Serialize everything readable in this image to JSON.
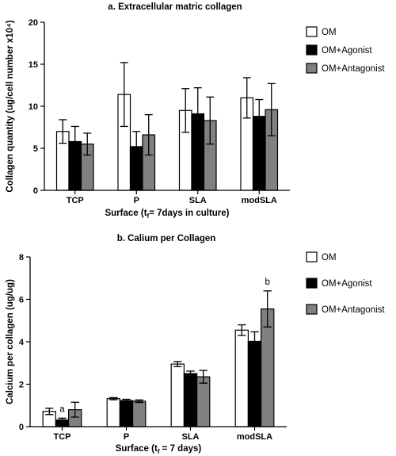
{
  "chart_data": [
    {
      "type": "bar",
      "title": "a. Extracellular matric collagen",
      "ylabel": "Collagen quantity (ug/cell number x10⁴)",
      "xlabel_parts": [
        "Surface (t",
        "f",
        "= 7days in culture)"
      ],
      "categories": [
        "TCP",
        "P",
        "SLA",
        "modSLA"
      ],
      "ylim": [
        0,
        20
      ],
      "yticks": [
        0,
        5,
        10,
        15,
        20
      ],
      "legend_position": "right",
      "series": [
        {
          "name": "OM",
          "color": "#ffffff",
          "values": [
            7.0,
            11.4,
            9.5,
            11.0
          ],
          "errors": [
            1.4,
            3.8,
            2.6,
            2.4
          ]
        },
        {
          "name": "OM+Agonist",
          "color": "#000000",
          "values": [
            5.8,
            5.2,
            9.1,
            8.8
          ],
          "errors": [
            1.8,
            1.8,
            3.1,
            2.0
          ]
        },
        {
          "name": "OM+Antagonist",
          "color": "#808080",
          "values": [
            5.5,
            6.6,
            8.3,
            9.6
          ],
          "errors": [
            1.3,
            2.4,
            2.8,
            3.1
          ]
        }
      ],
      "annotations": []
    },
    {
      "type": "bar",
      "title": "b. Calium per Collagen",
      "ylabel": "Calcium per collagen (ug/ug)",
      "xlabel_parts": [
        "Surface (t",
        "f",
        " = 7 days)"
      ],
      "categories": [
        "TCP",
        "P",
        "SLA",
        "modSLA"
      ],
      "ylim": [
        0,
        8
      ],
      "yticks": [
        0,
        2,
        4,
        6,
        8
      ],
      "legend_position": "right",
      "series": [
        {
          "name": "OM",
          "color": "#ffffff",
          "values": [
            0.72,
            1.32,
            2.95,
            4.55
          ],
          "errors": [
            0.15,
            0.05,
            0.12,
            0.25
          ]
        },
        {
          "name": "OM+Agonist",
          "color": "#000000",
          "values": [
            0.32,
            1.23,
            2.5,
            4.02
          ],
          "errors": [
            0.08,
            0.06,
            0.12,
            0.45
          ]
        },
        {
          "name": "OM+Antagonist",
          "color": "#808080",
          "values": [
            0.8,
            1.2,
            2.35,
            5.55
          ],
          "errors": [
            0.35,
            0.06,
            0.3,
            0.85
          ]
        }
      ],
      "annotations": [
        {
          "text": "a",
          "category": "TCP",
          "series": "OM+Agonist"
        },
        {
          "text": "b",
          "category": "modSLA",
          "series": "OM+Antagonist"
        }
      ]
    }
  ]
}
